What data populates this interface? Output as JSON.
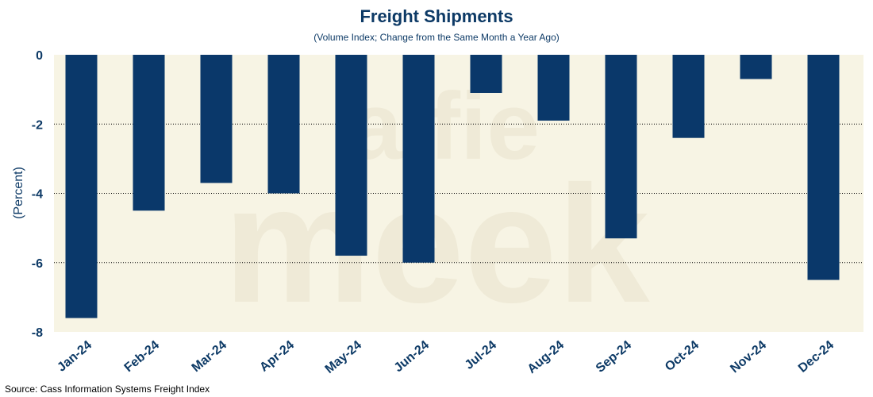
{
  "title": "Freight Shipments",
  "subtitle": "(Volume Index; Change from the Same Month a Year Ago)",
  "source": "Source: Cass Information Systems Freight Index",
  "watermark": [
    "alfie",
    "meek"
  ],
  "colors": {
    "bar": "#0a386a",
    "plot_background": "#f7f4e4",
    "text": "#0d3a66",
    "grid": "#000000"
  },
  "chart_data": {
    "type": "bar",
    "title": "Freight Shipments",
    "subtitle": "(Volume Index; Change from the Same Month a Year Ago)",
    "ylabel": "(Percent)",
    "xlabel": "",
    "categories": [
      "Jan-24",
      "Feb-24",
      "Mar-24",
      "Apr-24",
      "May-24",
      "Jun-24",
      "Jul-24",
      "Aug-24",
      "Sep-24",
      "Oct-24",
      "Nov-24",
      "Dec-24"
    ],
    "values": [
      -7.6,
      -4.5,
      -3.7,
      -4.0,
      -5.8,
      -6.0,
      -1.1,
      -1.9,
      -5.3,
      -2.4,
      -0.7,
      -6.5
    ],
    "ylim": [
      -8,
      0
    ],
    "yticks": [
      0,
      -2,
      -4,
      -6,
      -8
    ],
    "grid": "horizontal dotted",
    "legend": "none"
  }
}
